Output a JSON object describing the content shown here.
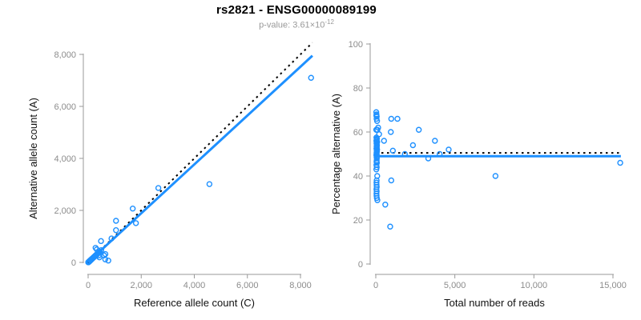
{
  "header": {
    "title": "rs2821 - ENSG00000089199",
    "p_value_label": "p-value: ",
    "p_value_mantissa": "3.61",
    "p_value_times": "×10",
    "p_value_exponent": "-12"
  },
  "colors": {
    "point_blue": "#1E90FF",
    "regression_blue": "#1E90FF",
    "identity_black": "#000000",
    "axis_line": "#999999",
    "tick_label": "#8C8C8C",
    "axis_title": "#111111",
    "title_text": "#000000",
    "subtitle_text": "#999999",
    "background": "#FFFFFF"
  },
  "chart_data": [
    {
      "id": "allele-count-scatter",
      "type": "scatter",
      "title": "",
      "xlabel": "Reference allele count (C)",
      "ylabel": "Alternative allele count (A)",
      "xlim": [
        0,
        8450
      ],
      "ylim": [
        0,
        8450
      ],
      "xticks": [
        0,
        2000,
        4000,
        6000,
        8000
      ],
      "yticks": [
        0,
        2000,
        4000,
        6000,
        8000
      ],
      "grid": false,
      "legend": "none",
      "lines": [
        {
          "name": "identity-line",
          "style": "dotted",
          "color_key": "identity_black",
          "width": 2,
          "points": [
            [
              0,
              0
            ],
            [
              8450,
              8450
            ]
          ]
        },
        {
          "name": "regression-line",
          "style": "solid",
          "color_key": "regression_blue",
          "width": 3,
          "points": [
            [
              0,
              10
            ],
            [
              8450,
              7950
            ]
          ]
        }
      ],
      "cluster_points": [
        [
          4,
          3
        ],
        [
          10,
          8
        ],
        [
          16,
          13
        ],
        [
          22,
          19
        ],
        [
          28,
          25
        ],
        [
          35,
          31
        ],
        [
          42,
          38
        ],
        [
          50,
          45
        ],
        [
          58,
          52
        ],
        [
          66,
          60
        ],
        [
          74,
          68
        ],
        [
          83,
          76
        ],
        [
          92,
          85
        ],
        [
          102,
          94
        ],
        [
          112,
          104
        ],
        [
          123,
          114
        ],
        [
          134,
          125
        ],
        [
          146,
          136
        ],
        [
          158,
          148
        ],
        [
          171,
          160
        ],
        [
          184,
          172
        ],
        [
          198,
          185
        ],
        [
          212,
          199
        ],
        [
          227,
          213
        ],
        [
          242,
          228
        ],
        [
          258,
          243
        ],
        [
          275,
          259
        ],
        [
          292,
          275
        ],
        [
          310,
          292
        ],
        [
          329,
          310
        ],
        [
          348,
          328
        ],
        [
          368,
          347
        ],
        [
          389,
          366
        ],
        [
          410,
          386
        ],
        [
          432,
          407
        ]
      ],
      "points": [
        [
          280,
          560
        ],
        [
          325,
          500
        ],
        [
          495,
          470
        ],
        [
          485,
          820
        ],
        [
          425,
          195
        ],
        [
          400,
          270
        ],
        [
          600,
          270
        ],
        [
          650,
          320
        ],
        [
          645,
          115
        ],
        [
          760,
          70
        ],
        [
          880,
          920
        ],
        [
          1050,
          1240
        ],
        [
          1050,
          1600
        ],
        [
          1680,
          2070
        ],
        [
          1800,
          1510
        ],
        [
          2645,
          2860
        ],
        [
          4570,
          3010
        ],
        [
          8400,
          7100
        ]
      ]
    },
    {
      "id": "percentage-vs-reads-scatter",
      "type": "scatter",
      "title": "",
      "xlabel": "Total number of reads",
      "ylabel": "Percentage alternative (A)",
      "xlim": [
        0,
        15500
      ],
      "ylim": [
        0,
        100
      ],
      "xticks": [
        0,
        5000,
        10000,
        15000
      ],
      "yticks": [
        0,
        20,
        40,
        60,
        80,
        100
      ],
      "grid": false,
      "legend": "none",
      "lines": [
        {
          "name": "identity-line",
          "style": "dotted",
          "color_key": "identity_black",
          "width": 2,
          "points": [
            [
              0,
              50.5
            ],
            [
              15500,
              50.5
            ]
          ]
        },
        {
          "name": "regression-line",
          "style": "solid",
          "color_key": "regression_blue",
          "width": 3,
          "points": [
            [
              0,
              49
            ],
            [
              15500,
              49
            ]
          ]
        }
      ],
      "cluster_points": [],
      "points": [
        [
          30,
          69
        ],
        [
          45,
          68
        ],
        [
          35,
          67.5
        ],
        [
          60,
          67
        ],
        [
          50,
          66
        ],
        [
          980,
          66
        ],
        [
          1370,
          66
        ],
        [
          80,
          65
        ],
        [
          150,
          62
        ],
        [
          30,
          61
        ],
        [
          100,
          61
        ],
        [
          2720,
          61
        ],
        [
          950,
          60
        ],
        [
          210,
          59
        ],
        [
          40,
          57.5
        ],
        [
          70,
          57
        ],
        [
          55,
          56.5
        ],
        [
          520,
          56
        ],
        [
          3740,
          56
        ],
        [
          35,
          56
        ],
        [
          90,
          55.5
        ],
        [
          60,
          55
        ],
        [
          45,
          54.8
        ],
        [
          75,
          54
        ],
        [
          2350,
          54
        ],
        [
          50,
          53.5
        ],
        [
          65,
          53
        ],
        [
          40,
          52.5
        ],
        [
          4610,
          52
        ],
        [
          85,
          52
        ],
        [
          55,
          51.5
        ],
        [
          1080,
          51.5
        ],
        [
          70,
          51
        ],
        [
          45,
          50.5
        ],
        [
          60,
          50
        ],
        [
          4040,
          50
        ],
        [
          1840,
          50
        ],
        [
          35,
          49.5
        ],
        [
          80,
          49
        ],
        [
          50,
          48.5
        ],
        [
          3320,
          48
        ],
        [
          65,
          48
        ],
        [
          55,
          47
        ],
        [
          45,
          46.5
        ],
        [
          15460,
          46
        ],
        [
          70,
          46
        ],
        [
          40,
          45
        ],
        [
          60,
          44
        ],
        [
          35,
          43
        ],
        [
          90,
          40
        ],
        [
          7570,
          40
        ],
        [
          980,
          38
        ],
        [
          55,
          38
        ],
        [
          45,
          37
        ],
        [
          50,
          36
        ],
        [
          60,
          35
        ],
        [
          40,
          34
        ],
        [
          55,
          33
        ],
        [
          45,
          32
        ],
        [
          50,
          31
        ],
        [
          65,
          30
        ],
        [
          100,
          29
        ],
        [
          600,
          27
        ],
        [
          910,
          17
        ]
      ]
    }
  ]
}
